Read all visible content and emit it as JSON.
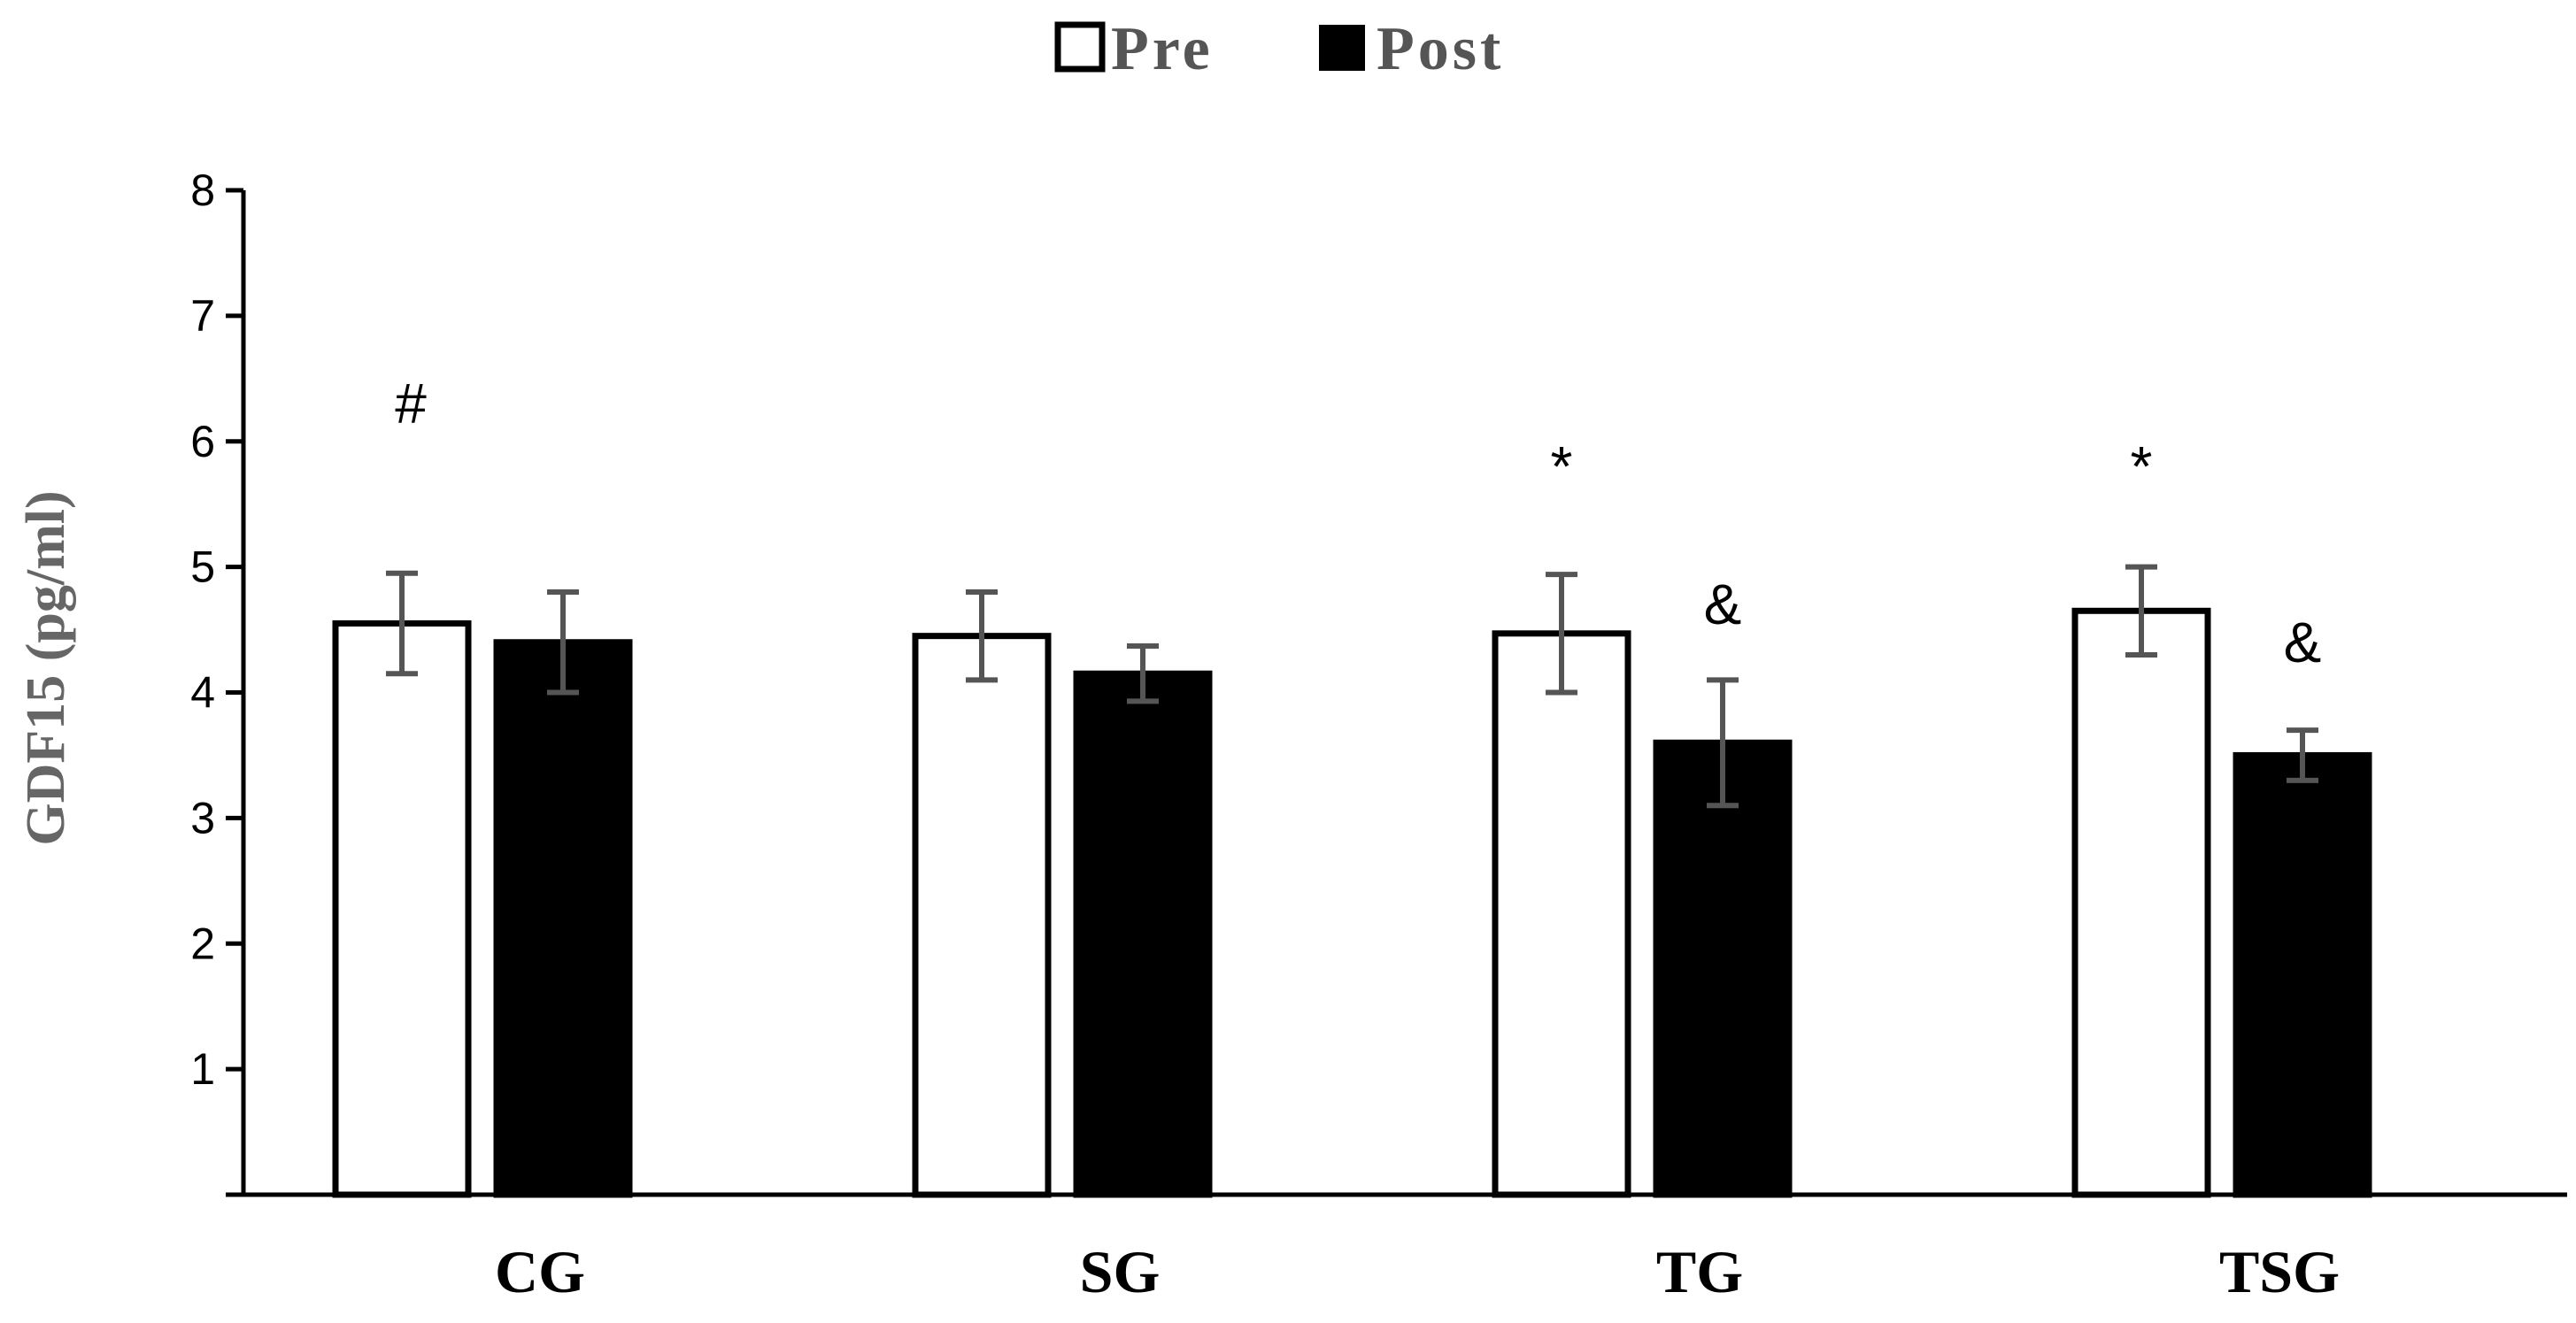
{
  "chart_data": {
    "type": "bar",
    "categories": [
      "CG",
      "SG",
      "TG",
      "TSG"
    ],
    "series": [
      {
        "name": "Pre",
        "color": "#ffffff",
        "values": [
          4.55,
          4.45,
          4.47,
          4.65
        ],
        "errors": [
          0.4,
          0.35,
          0.47,
          0.35
        ]
      },
      {
        "name": "Post",
        "color": "#000000",
        "values": [
          4.4,
          4.15,
          3.6,
          3.5
        ],
        "errors": [
          0.4,
          0.22,
          0.5,
          0.2
        ]
      }
    ],
    "title": "",
    "xlabel": "",
    "ylabel": "GDF15 (pg/ml)",
    "ylim": [
      0,
      8
    ],
    "yticks": [
      "1",
      "2",
      "3",
      "4",
      "5",
      "6",
      "7",
      "8"
    ],
    "legend_position": "top-center",
    "grid": false,
    "annotations": [
      {
        "text": "#",
        "category": "CG",
        "series": "Pre",
        "y": 6.3
      },
      {
        "text": "*",
        "category": "TG",
        "series": "Pre",
        "y": 5.8
      },
      {
        "text": "&",
        "category": "TG",
        "series": "Post",
        "y": 4.7
      },
      {
        "text": "*",
        "category": "TSG",
        "series": "Pre",
        "y": 5.8
      },
      {
        "text": "&",
        "category": "TSG",
        "series": "Post",
        "y": 4.4
      }
    ]
  },
  "colors": {
    "axis": "#000000",
    "error_bar": "#555555",
    "bar_outline": "#000000"
  }
}
